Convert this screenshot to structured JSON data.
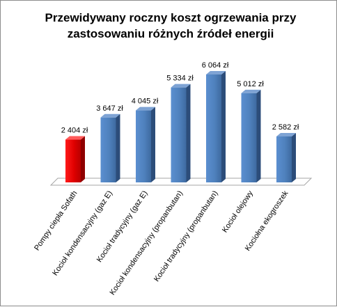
{
  "chart_data": {
    "type": "bar",
    "title_lines": [
      "Przewidywany roczny koszt ogrzewania przy",
      "zastosowaniu różnych źródeł energii"
    ],
    "categories": [
      "Pompy ciepła Sofath",
      "Kocioł kondensacyjny (gaz E)",
      "Kocioł tradycyjny (gaz E)",
      "Kocioł kondensacyjny (propanbutan)",
      "Kocioł tradycyjny (propanbutan)",
      "Kocioł olejowy",
      "Kociołna ekogroszek"
    ],
    "values": [
      2404,
      3647,
      4045,
      5334,
      6064,
      5012,
      2582
    ],
    "data_labels": [
      "2 404 zł",
      "3 647 zł",
      "4 045 zł",
      "5 334 zł",
      "6 064 zł",
      "5 012 zł",
      "2 582 zł"
    ],
    "bar_colors": [
      "#e00000",
      "#4f81bd",
      "#4f81bd",
      "#4f81bd",
      "#4f81bd",
      "#4f81bd",
      "#4f81bd"
    ],
    "ylim": [
      0,
      7000
    ],
    "grid": false,
    "legend": "none",
    "floor_color": "#ffffff"
  }
}
